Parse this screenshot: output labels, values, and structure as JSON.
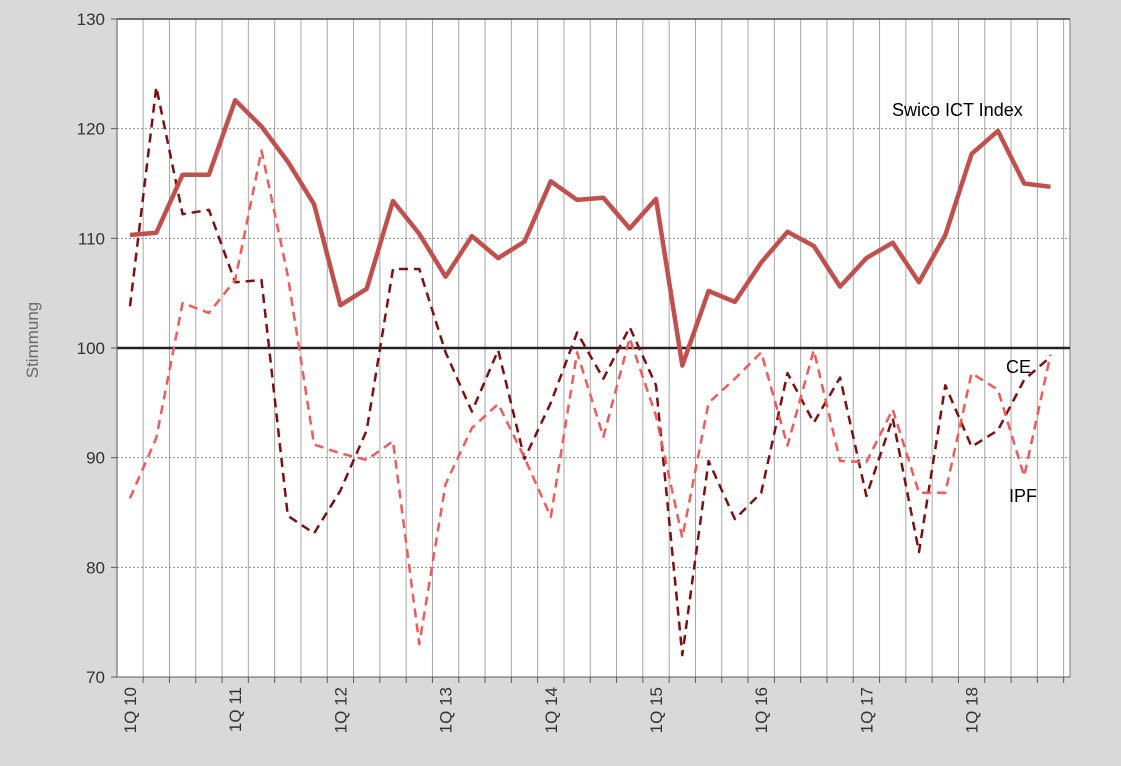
{
  "chart_data": {
    "type": "line",
    "title": "",
    "ylabel": "Stimmung",
    "xlabel": "",
    "ylim": [
      70,
      130
    ],
    "yticks": [
      70,
      80,
      90,
      100,
      110,
      120,
      130
    ],
    "reference_line": 100,
    "grid": true,
    "x_tick_labels": [
      {
        "label": "1Q 10",
        "index": 0
      },
      {
        "label": "1Q 11",
        "index": 4
      },
      {
        "label": "1Q 12",
        "index": 8
      },
      {
        "label": "1Q 13",
        "index": 12
      },
      {
        "label": "1Q 14",
        "index": 16
      },
      {
        "label": "1Q 15",
        "index": 20
      },
      {
        "label": "1Q 16",
        "index": 24
      },
      {
        "label": "1Q 17",
        "index": 28
      },
      {
        "label": "1Q 18",
        "index": 32
      }
    ],
    "series": [
      {
        "name": "Swico ICT Index",
        "color": "#c0504d",
        "style": "solid",
        "values": [
          110.3,
          110.5,
          115.8,
          115.8,
          122.6,
          120.2,
          117.0,
          113.1,
          103.9,
          105.4,
          113.4,
          110.4,
          106.5,
          110.2,
          108.2,
          109.7,
          115.2,
          113.5,
          113.7,
          110.9,
          113.6,
          98.4,
          105.2,
          104.2,
          107.8,
          110.6,
          109.3,
          105.6,
          108.2,
          109.6,
          106.0,
          110.3,
          117.7,
          119.8,
          115.0,
          114.7
        ]
      },
      {
        "name": "CE",
        "color": "#7b1010",
        "style": "dashed",
        "values": [
          103.8,
          123.8,
          112.2,
          112.6,
          106.0,
          106.2,
          84.7,
          83.1,
          87.0,
          92.5,
          107.2,
          107.2,
          99.6,
          94.2,
          99.8,
          89.9,
          95.0,
          101.4,
          97.2,
          101.9,
          96.6,
          72.0,
          89.7,
          84.4,
          86.8,
          97.7,
          93.2,
          97.3,
          86.5,
          93.6,
          81.4,
          96.6,
          91.0,
          92.5,
          97.1,
          99.2
        ]
      },
      {
        "name": "IPF",
        "color": "#f05a5a",
        "style": "dashed",
        "values": [
          86.3,
          91.8,
          104.1,
          103.2,
          106.2,
          118.0,
          106.6,
          91.2,
          90.4,
          89.8,
          91.5,
          73.0,
          87.6,
          92.7,
          94.9,
          90.0,
          84.6,
          99.6,
          91.9,
          100.9,
          93.8,
          82.7,
          95.0,
          97.2,
          99.6,
          91.1,
          99.8,
          89.7,
          89.6,
          94.4,
          86.8,
          86.8,
          97.7,
          96.2,
          88.3,
          99.4
        ]
      }
    ],
    "labels": {
      "swico": "Swico ICT Index",
      "ce": "CE",
      "ipf": "IPF"
    }
  }
}
